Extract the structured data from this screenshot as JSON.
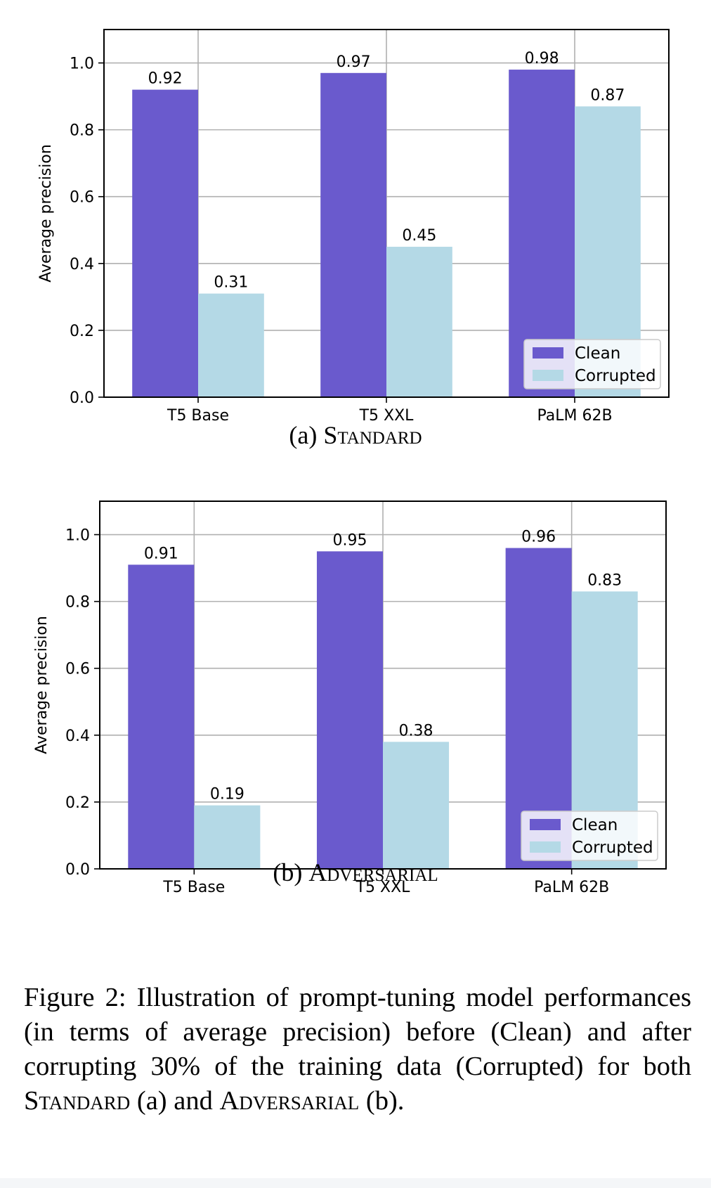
{
  "chart_data": [
    {
      "type": "bar",
      "categories": [
        "T5 Base",
        "T5 XXL",
        "PaLM 62B"
      ],
      "series": [
        {
          "name": "Clean",
          "values": [
            0.92,
            0.97,
            0.98
          ],
          "value_labels": [
            "0.92",
            "0.97",
            "0.98"
          ],
          "color": "#6a5acd"
        },
        {
          "name": "Corrupted",
          "values": [
            0.31,
            0.45,
            0.87
          ],
          "value_labels": [
            "0.31",
            "0.45",
            "0.87"
          ],
          "color": "#b4d9e6"
        }
      ],
      "ylabel": "Average precision",
      "ylim": [
        0,
        1.1
      ],
      "yticks": [
        "0.0",
        "0.2",
        "0.4",
        "0.6",
        "0.8",
        "1.0"
      ],
      "ytick_values": [
        0,
        0.2,
        0.4,
        0.6,
        0.8,
        1.0
      ],
      "grid": true,
      "legend_position": "bottom-right",
      "caption_prefix": "(a) ",
      "caption_name": "Standard"
    },
    {
      "type": "bar",
      "categories": [
        "T5 Base",
        "T5 XXL",
        "PaLM 62B"
      ],
      "series": [
        {
          "name": "Clean",
          "values": [
            0.91,
            0.95,
            0.96
          ],
          "value_labels": [
            "0.91",
            "0.95",
            "0.96"
          ],
          "color": "#6a5acd"
        },
        {
          "name": "Corrupted",
          "values": [
            0.19,
            0.38,
            0.83
          ],
          "value_labels": [
            "0.19",
            "0.38",
            "0.83"
          ],
          "color": "#b4d9e6"
        }
      ],
      "ylabel": "Average precision",
      "ylim": [
        0,
        1.1
      ],
      "yticks": [
        "0.0",
        "0.2",
        "0.4",
        "0.6",
        "0.8",
        "1.0"
      ],
      "ytick_values": [
        0,
        0.2,
        0.4,
        0.6,
        0.8,
        1.0
      ],
      "grid": true,
      "legend_position": "bottom-right",
      "caption_prefix": "(b) ",
      "caption_name": "Adversarial"
    }
  ],
  "figure_caption": {
    "part1": "Figure 2: Illustration of prompt-tuning model performances (in terms of average precision) before (Clean) and after corrupting 30% of the training data (Corrupted) for both ",
    "standard": "Standard",
    "part2": " (a) and ",
    "adversarial": "Adversarial",
    "part3": " (b)."
  }
}
